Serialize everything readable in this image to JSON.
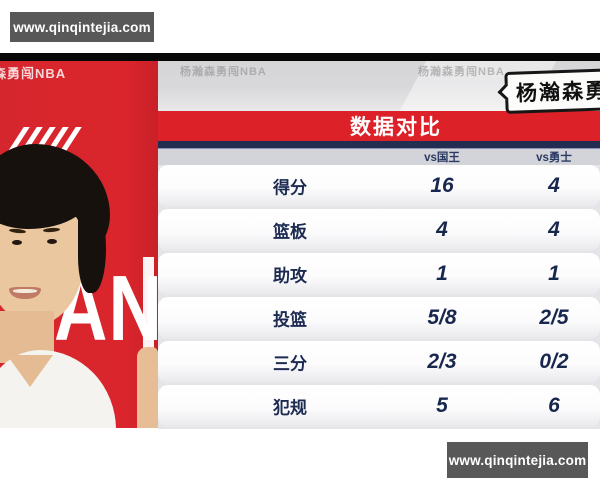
{
  "watermarks": {
    "top": "www.qinqintejia.com",
    "bottom": "www.qinqintejia.com"
  },
  "photo": {
    "corner_text": "森勇闯NBA",
    "jersey_text": "AND"
  },
  "overlay": {
    "faint_watermarks": [
      "杨瀚森勇闯NBA",
      "杨瀚森勇闯NBA"
    ],
    "bubble_text": "杨瀚森勇"
  },
  "chart_data": {
    "type": "table",
    "title": "数据对比",
    "columns": [
      "vs国王",
      "vs勇士"
    ],
    "rows": [
      {
        "label": "得分",
        "values": [
          "16",
          "4"
        ]
      },
      {
        "label": "篮板",
        "values": [
          "4",
          "4"
        ]
      },
      {
        "label": "助攻",
        "values": [
          "1",
          "1"
        ]
      },
      {
        "label": "投篮",
        "values": [
          "5/8",
          "2/5"
        ]
      },
      {
        "label": "三分",
        "values": [
          "2/3",
          "0/2"
        ]
      },
      {
        "label": "犯规",
        "values": [
          "5",
          "6"
        ]
      }
    ]
  },
  "colors": {
    "accent_red": "#dc2128",
    "navy_text": "#1d2b52",
    "navy_stripe": "#232d52",
    "header_gray": "#d2d4d9",
    "watermark_box": "#585858"
  }
}
